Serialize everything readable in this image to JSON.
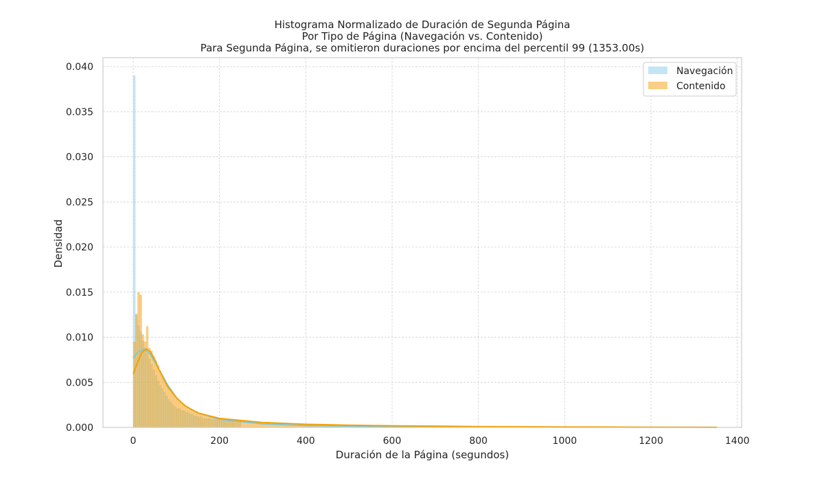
{
  "chart_data": {
    "type": "histogram",
    "title_lines": [
      "Histograma Normalizado de Duración de Segunda Página",
      "Por Tipo de Página (Navegación vs. Contenido)",
      "Para Segunda Página, se omitieron duraciones por encima del percentil 99 (1353.00s)"
    ],
    "xlabel": "Duración de la Página (segundos)",
    "ylabel": "Densidad",
    "xlim": [
      -70,
      1410
    ],
    "ylim": [
      0,
      0.041
    ],
    "xticks": [
      "0",
      "200",
      "400",
      "600",
      "800",
      "1000",
      "1200",
      "1400"
    ],
    "yticks": [
      "0.000",
      "0.005",
      "0.010",
      "0.015",
      "0.020",
      "0.025",
      "0.030",
      "0.035",
      "0.040"
    ],
    "grid": true,
    "legend_position": "top-right",
    "bin_width": 5,
    "x_max": 1353,
    "series": [
      {
        "name": "Navegación",
        "color": "#87ceeb",
        "bar_alpha": 0.5,
        "kde_color": "#7ec8d8",
        "bin_starts": [
          0,
          5,
          10,
          15,
          20,
          25,
          30,
          35,
          40,
          45,
          50,
          55,
          60,
          65,
          70,
          75,
          80,
          85,
          90,
          95,
          100,
          110,
          120,
          130,
          140,
          150,
          160,
          180,
          200
        ],
        "densities": [
          0.039,
          0.0126,
          0.0113,
          0.0106,
          0.0096,
          0.0088,
          0.0082,
          0.0076,
          0.007,
          0.0064,
          0.0058,
          0.0052,
          0.0047,
          0.0043,
          0.0039,
          0.0035,
          0.0031,
          0.0028,
          0.0025,
          0.0023,
          0.0021,
          0.0019,
          0.0017,
          0.0015,
          0.0013,
          0.0012,
          0.001,
          0.0009,
          0.0008
        ],
        "kde": [
          [
            0,
            0.0077
          ],
          [
            10,
            0.0083
          ],
          [
            25,
            0.0087
          ],
          [
            40,
            0.0081
          ],
          [
            60,
            0.0064
          ],
          [
            80,
            0.0047
          ],
          [
            100,
            0.0033
          ],
          [
            120,
            0.0024
          ],
          [
            150,
            0.0016
          ],
          [
            200,
            0.0009
          ],
          [
            300,
            0.0004
          ],
          [
            400,
            0.0002
          ],
          [
            600,
            0.0001
          ],
          [
            800,
            5e-05
          ],
          [
            1000,
            2e-05
          ],
          [
            1353,
            1e-05
          ]
        ]
      },
      {
        "name": "Contenido",
        "color": "#f5a623",
        "bar_alpha": 0.55,
        "kde_color": "#f5a000",
        "bin_starts": [
          0,
          5,
          10,
          15,
          20,
          25,
          30,
          35,
          40,
          45,
          50,
          55,
          60,
          65,
          70,
          75,
          80,
          85,
          90,
          95,
          100,
          105,
          110,
          115,
          120,
          125,
          130,
          140,
          150,
          160,
          170,
          180,
          190,
          200,
          220,
          240,
          260,
          280,
          300,
          350,
          400,
          450,
          500,
          600,
          700,
          800,
          900,
          1000,
          1100,
          1200,
          1300
        ],
        "densities": [
          0.0095,
          0.0125,
          0.015,
          0.0147,
          0.0103,
          0.0095,
          0.0112,
          0.0088,
          0.0085,
          0.0079,
          0.0074,
          0.0069,
          0.0063,
          0.0058,
          0.0053,
          0.0049,
          0.0045,
          0.0041,
          0.0038,
          0.0035,
          0.0032,
          0.003,
          0.0028,
          0.0026,
          0.0024,
          0.0022,
          0.002,
          0.0018,
          0.0016,
          0.0014,
          0.0012,
          0.0011,
          0.001,
          0.0009,
          0.0008,
          0.0007,
          0.0006,
          0.0005,
          0.0004,
          0.0003,
          0.00025,
          0.0002,
          0.00015,
          0.00012,
          0.0001,
          8e-05,
          6e-05,
          5e-05,
          4e-05,
          3e-05,
          2e-05
        ],
        "kde": [
          [
            0,
            0.0059
          ],
          [
            10,
            0.0072
          ],
          [
            20,
            0.0083
          ],
          [
            30,
            0.0087
          ],
          [
            40,
            0.0084
          ],
          [
            50,
            0.0075
          ],
          [
            60,
            0.0064
          ],
          [
            80,
            0.0045
          ],
          [
            100,
            0.0033
          ],
          [
            120,
            0.0024
          ],
          [
            150,
            0.0016
          ],
          [
            200,
            0.001
          ],
          [
            300,
            0.00055
          ],
          [
            400,
            0.00035
          ],
          [
            500,
            0.00025
          ],
          [
            600,
            0.00018
          ],
          [
            800,
            0.0001
          ],
          [
            1000,
            6e-05
          ],
          [
            1200,
            3e-05
          ],
          [
            1353,
            2e-05
          ]
        ]
      }
    ]
  }
}
